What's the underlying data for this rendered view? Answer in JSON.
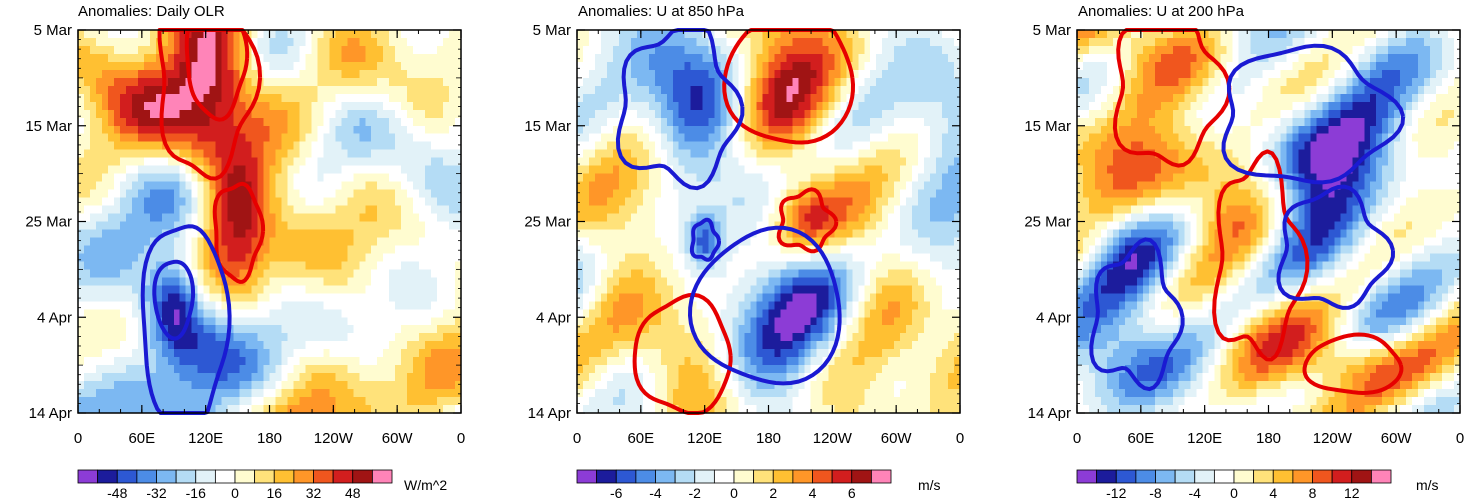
{
  "chart_data": [
    {
      "type": "heatmap",
      "title": "Anomalies: Daily OLR",
      "units": "W/m^2",
      "x_tick_labels": [
        "0",
        "60E",
        "120E",
        "180",
        "120W",
        "60W",
        "0"
      ],
      "y_tick_labels": [
        "5 Mar",
        "15 Mar",
        "25 Mar",
        "4 Apr",
        "14 Apr"
      ],
      "xlim_deg_east": [
        0,
        360
      ],
      "ylim_days": [
        0,
        40
      ],
      "colorbar_labels": [
        "-48",
        "-32",
        "-16",
        "0",
        "16",
        "32",
        "48"
      ],
      "colorbar_range": [
        -64,
        64
      ],
      "seed": 11,
      "field_scale": 48,
      "red_contours": [
        {
          "lon": 130,
          "day": 3,
          "rlon": 28,
          "rday": 6
        },
        {
          "lon": 150,
          "day": 21,
          "rlon": 22,
          "rday": 5
        },
        {
          "lon": 120,
          "day": 5,
          "rlon": 45,
          "rday": 10
        }
      ],
      "blue_contours": [
        {
          "lon": 90,
          "day": 28,
          "rlon": 18,
          "rday": 4
        },
        {
          "lon": 100,
          "day": 31,
          "rlon": 40,
          "rday": 11
        }
      ]
    },
    {
      "type": "heatmap",
      "title": "Anomalies: U at 850 hPa",
      "units": "m/s",
      "x_tick_labels": [
        "0",
        "60E",
        "120E",
        "180",
        "120W",
        "60W",
        "0"
      ],
      "y_tick_labels": [
        "5 Mar",
        "15 Mar",
        "25 Mar",
        "4 Apr",
        "14 Apr"
      ],
      "xlim_deg_east": [
        0,
        360
      ],
      "ylim_days": [
        0,
        40
      ],
      "colorbar_labels": [
        "-6",
        "-4",
        "-2",
        "0",
        "2",
        "4",
        "6"
      ],
      "colorbar_range": [
        -8,
        8
      ],
      "seed": 23,
      "field_scale": 6,
      "red_contours": [
        {
          "lon": 215,
          "day": 20,
          "rlon": 25,
          "rday": 3
        },
        {
          "lon": 200,
          "day": 5,
          "rlon": 60,
          "rday": 7
        },
        {
          "lon": 100,
          "day": 34,
          "rlon": 45,
          "rday": 6
        }
      ],
      "blue_contours": [
        {
          "lon": 120,
          "day": 22,
          "rlon": 12,
          "rday": 2
        },
        {
          "lon": 95,
          "day": 8,
          "rlon": 55,
          "rday": 8
        },
        {
          "lon": 180,
          "day": 29,
          "rlon": 70,
          "rday": 8
        }
      ]
    },
    {
      "type": "heatmap",
      "title": "Anomalies: U at 200 hPa",
      "units": "m/s",
      "x_tick_labels": [
        "0",
        "60E",
        "120E",
        "180",
        "120W",
        "60W",
        "0"
      ],
      "y_tick_labels": [
        "5 Mar",
        "15 Mar",
        "25 Mar",
        "4 Apr",
        "14 Apr"
      ],
      "xlim_deg_east": [
        0,
        360
      ],
      "ylim_days": [
        0,
        40
      ],
      "colorbar_labels": [
        "-12",
        "-8",
        "-4",
        "0",
        "4",
        "8",
        "12"
      ],
      "colorbar_range": [
        -16,
        16
      ],
      "seed": 37,
      "field_scale": 12,
      "red_contours": [
        {
          "lon": 85,
          "day": 6,
          "rlon": 50,
          "rday": 8
        },
        {
          "lon": 170,
          "day": 24,
          "rlon": 40,
          "rday": 10
        },
        {
          "lon": 260,
          "day": 35,
          "rlon": 45,
          "rday": 3
        }
      ],
      "blue_contours": [
        {
          "lon": 215,
          "day": 9,
          "rlon": 80,
          "rday": 7
        },
        {
          "lon": 240,
          "day": 23,
          "rlon": 50,
          "rday": 6
        },
        {
          "lon": 55,
          "day": 30,
          "rlon": 40,
          "rday": 7
        }
      ]
    }
  ],
  "colors": {
    "palette": [
      "#8c3cd6",
      "#1c1c9c",
      "#2d58d3",
      "#4c8ce6",
      "#7cb8f2",
      "#b4dcf5",
      "#e2f2f8",
      "#ffffff",
      "#fffcd0",
      "#ffe27a",
      "#ffc032",
      "#ff9628",
      "#f0561e",
      "#d21e1e",
      "#a01414",
      "#ff84b8"
    ],
    "red_contour": "#e60000",
    "blue_contour": "#1a1ad2"
  }
}
